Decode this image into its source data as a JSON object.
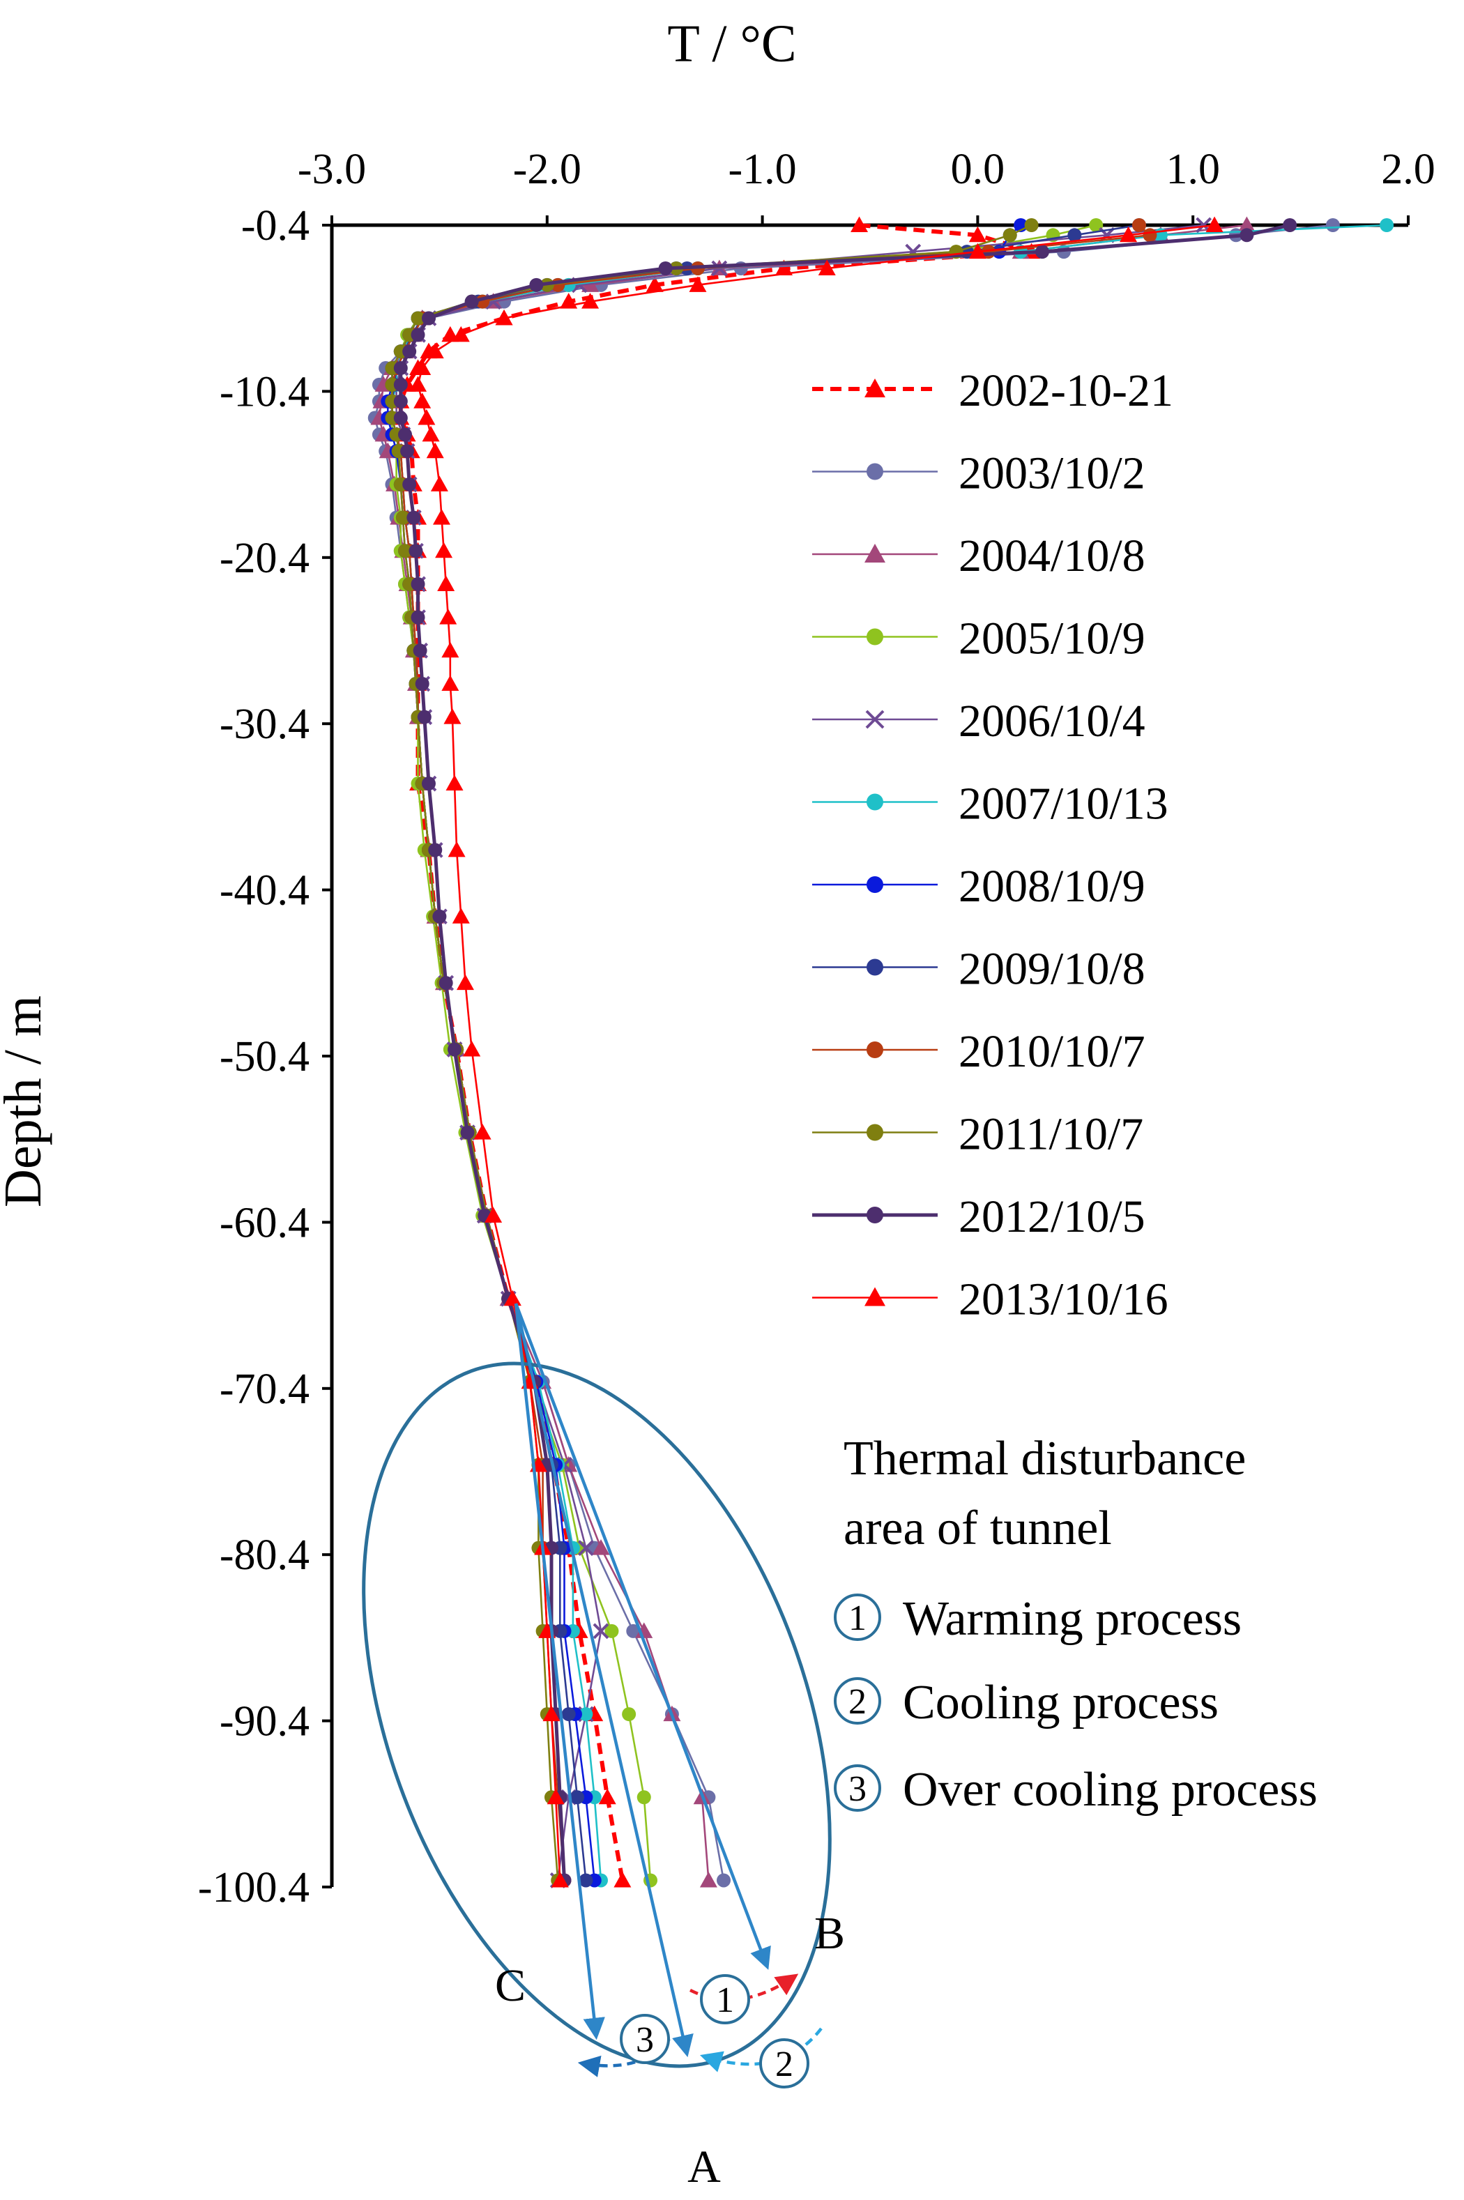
{
  "chart_data": {
    "type": "line",
    "title": "",
    "xlabel": "T / °C",
    "ylabel": "Depth / m",
    "xlim": [
      -3.0,
      2.0
    ],
    "ylim": [
      -100.4,
      -0.4
    ],
    "xticks": [
      "-3.0",
      "-2.0",
      "-1.0",
      "0.0",
      "1.0",
      "2.0"
    ],
    "yticks": [
      "-0.4",
      "-10.4",
      "-20.4",
      "-30.4",
      "-40.4",
      "-50.4",
      "-60.4",
      "-70.4",
      "-80.4",
      "-90.4",
      "-100.4"
    ],
    "depths": [
      -0.4,
      -1,
      -2,
      -3,
      -4,
      -5,
      -6,
      -7,
      -8,
      -9,
      -10,
      -11,
      -12,
      -13,
      -14,
      -16,
      -18,
      -20,
      -22,
      -24,
      -26,
      -28,
      -30,
      -34,
      -38,
      -42,
      -46,
      -50,
      -55,
      -60,
      -65,
      -70,
      -75,
      -80,
      -85,
      -90,
      -95,
      -100
    ],
    "series": [
      {
        "name": "2002-10-21",
        "color": "#ff0000",
        "marker": "triangle",
        "dashed": true,
        "values": [
          -0.55,
          0.0,
          0.25,
          -0.9,
          -1.5,
          -1.9,
          -2.2,
          -2.45,
          -2.55,
          -2.6,
          -2.65,
          -2.68,
          -2.68,
          -2.65,
          -2.63,
          -2.62,
          -2.6,
          -2.6,
          -2.6,
          -2.6,
          -2.6,
          -2.6,
          -2.6,
          -2.6,
          -2.55,
          -2.52,
          -2.48,
          -2.42,
          -2.36,
          -2.28,
          -2.18,
          -2.05,
          -1.97,
          -1.9,
          -1.85,
          -1.78,
          -1.72,
          -1.65
        ]
      },
      {
        "name": "2003/10/2",
        "color": "#6b6fa8",
        "marker": "circle",
        "dashed": false,
        "values": [
          1.65,
          1.2,
          0.4,
          -1.1,
          -1.75,
          -2.2,
          -2.55,
          -2.62,
          -2.68,
          -2.75,
          -2.78,
          -2.78,
          -2.8,
          -2.78,
          -2.75,
          -2.72,
          -2.7,
          -2.68,
          -2.66,
          -2.64,
          -2.62,
          -2.6,
          -2.6,
          -2.58,
          -2.55,
          -2.52,
          -2.48,
          -2.42,
          -2.36,
          -2.28,
          -2.18,
          -2.02,
          -1.9,
          -1.78,
          -1.6,
          -1.42,
          -1.25,
          -1.18
        ]
      },
      {
        "name": "2004/10/8",
        "color": "#a3477a",
        "marker": "triangle",
        "dashed": false,
        "values": [
          1.25,
          0.85,
          0.2,
          -1.2,
          -1.8,
          -2.25,
          -2.58,
          -2.62,
          -2.66,
          -2.72,
          -2.76,
          -2.77,
          -2.78,
          -2.76,
          -2.74,
          -2.71,
          -2.69,
          -2.67,
          -2.65,
          -2.63,
          -2.62,
          -2.61,
          -2.6,
          -2.58,
          -2.55,
          -2.52,
          -2.48,
          -2.42,
          -2.36,
          -2.28,
          -2.18,
          -2.02,
          -1.9,
          -1.75,
          -1.55,
          -1.42,
          -1.28,
          -1.25
        ]
      },
      {
        "name": "2005/10/9",
        "color": "#8fc31f",
        "marker": "circle",
        "dashed": false,
        "values": [
          0.55,
          0.35,
          -0.1,
          -1.3,
          -1.9,
          -2.3,
          -2.6,
          -2.65,
          -2.68,
          -2.72,
          -2.72,
          -2.72,
          -2.72,
          -2.72,
          -2.7,
          -2.7,
          -2.68,
          -2.68,
          -2.66,
          -2.64,
          -2.62,
          -2.61,
          -2.6,
          -2.6,
          -2.57,
          -2.53,
          -2.49,
          -2.45,
          -2.38,
          -2.3,
          -2.18,
          -2.07,
          -1.93,
          -1.85,
          -1.7,
          -1.62,
          -1.55,
          -1.52
        ]
      },
      {
        "name": "2006/10/4",
        "color": "#6e4a94",
        "marker": "x",
        "dashed": false,
        "values": [
          1.05,
          0.6,
          -0.3,
          -1.2,
          -1.85,
          -2.25,
          -2.55,
          -2.6,
          -2.64,
          -2.68,
          -2.7,
          -2.7,
          -2.7,
          -2.67,
          -2.65,
          -2.64,
          -2.62,
          -2.61,
          -2.6,
          -2.6,
          -2.59,
          -2.58,
          -2.57,
          -2.55,
          -2.52,
          -2.5,
          -2.47,
          -2.43,
          -2.37,
          -2.29,
          -2.18,
          -2.05,
          -1.92,
          -1.82,
          -1.75,
          -1.82,
          -1.9,
          -1.95
        ]
      },
      {
        "name": "2007/10/13",
        "color": "#1fc0c8",
        "marker": "circle",
        "dashed": false,
        "values": [
          1.9,
          0.85,
          0.2,
          -1.3,
          -1.9,
          -2.3,
          -2.6,
          -2.64,
          -2.67,
          -2.7,
          -2.7,
          -2.72,
          -2.72,
          -2.7,
          -2.68,
          -2.67,
          -2.66,
          -2.64,
          -2.63,
          -2.62,
          -2.61,
          -2.6,
          -2.6,
          -2.58,
          -2.55,
          -2.52,
          -2.48,
          -2.42,
          -2.36,
          -2.28,
          -2.18,
          -2.04,
          -1.95,
          -1.88,
          -1.88,
          -1.82,
          -1.78,
          -1.75
        ]
      },
      {
        "name": "2008/10/9",
        "color": "#0a1adc",
        "marker": "circle",
        "dashed": false,
        "values": [
          0.2,
          0.15,
          0.1,
          -1.4,
          -2.0,
          -2.35,
          -2.6,
          -2.64,
          -2.68,
          -2.72,
          -2.72,
          -2.74,
          -2.74,
          -2.72,
          -2.7,
          -2.68,
          -2.67,
          -2.66,
          -2.64,
          -2.63,
          -2.62,
          -2.61,
          -2.6,
          -2.58,
          -2.55,
          -2.52,
          -2.48,
          -2.42,
          -2.36,
          -2.28,
          -2.18,
          -2.05,
          -1.96,
          -1.92,
          -1.92,
          -1.87,
          -1.82,
          -1.78
        ]
      },
      {
        "name": "2009/10/8",
        "color": "#2c3a92",
        "marker": "circle",
        "dashed": false,
        "values": [
          0.75,
          0.45,
          -0.05,
          -1.35,
          -1.95,
          -2.32,
          -2.58,
          -2.63,
          -2.66,
          -2.7,
          -2.71,
          -2.72,
          -2.72,
          -2.7,
          -2.68,
          -2.67,
          -2.66,
          -2.64,
          -2.63,
          -2.62,
          -2.61,
          -2.6,
          -2.6,
          -2.58,
          -2.55,
          -2.52,
          -2.48,
          -2.42,
          -2.36,
          -2.28,
          -2.18,
          -2.06,
          -1.98,
          -1.94,
          -1.94,
          -1.9,
          -1.86,
          -1.82
        ]
      },
      {
        "name": "2010/10/7",
        "color": "#b83d12",
        "marker": "circle",
        "dashed": false,
        "values": [
          0.75,
          0.8,
          0.05,
          -1.3,
          -1.95,
          -2.3,
          -2.58,
          -2.62,
          -2.66,
          -2.7,
          -2.72,
          -2.72,
          -2.72,
          -2.7,
          -2.68,
          -2.67,
          -2.66,
          -2.64,
          -2.63,
          -2.62,
          -2.61,
          -2.6,
          -2.6,
          -2.58,
          -2.55,
          -2.52,
          -2.48,
          -2.42,
          -2.36,
          -2.28,
          -2.18,
          -2.08,
          -2.02,
          -2.02,
          -2.0,
          -1.98,
          -1.95,
          -1.92
        ]
      },
      {
        "name": "2011/10/7",
        "color": "#7f7f10",
        "marker": "circle",
        "dashed": false,
        "values": [
          0.25,
          0.15,
          -0.1,
          -1.4,
          -2.0,
          -2.35,
          -2.6,
          -2.64,
          -2.68,
          -2.72,
          -2.72,
          -2.72,
          -2.72,
          -2.7,
          -2.69,
          -2.68,
          -2.67,
          -2.66,
          -2.64,
          -2.63,
          -2.62,
          -2.61,
          -2.6,
          -2.58,
          -2.55,
          -2.52,
          -2.48,
          -2.42,
          -2.36,
          -2.28,
          -2.18,
          -2.08,
          -2.04,
          -2.04,
          -2.02,
          -2.0,
          -1.98,
          -1.95
        ]
      },
      {
        "name": "2012/10/5",
        "color": "#4d2e6e",
        "marker": "circle",
        "dashed": false,
        "values": [
          1.45,
          1.25,
          0.3,
          -1.45,
          -2.05,
          -2.35,
          -2.55,
          -2.6,
          -2.64,
          -2.68,
          -2.68,
          -2.68,
          -2.68,
          -2.66,
          -2.65,
          -2.64,
          -2.62,
          -2.61,
          -2.6,
          -2.6,
          -2.59,
          -2.58,
          -2.57,
          -2.55,
          -2.52,
          -2.5,
          -2.47,
          -2.43,
          -2.37,
          -2.29,
          -2.18,
          -2.06,
          -2.0,
          -1.98,
          -1.98,
          -1.96,
          -1.94,
          -1.92
        ]
      },
      {
        "name": "2013/10/16",
        "color": "#ff0000",
        "marker": "triangle",
        "dashed": false,
        "values": [
          1.1,
          0.7,
          0.0,
          -0.7,
          -1.3,
          -1.8,
          -2.2,
          -2.4,
          -2.52,
          -2.58,
          -2.6,
          -2.58,
          -2.56,
          -2.54,
          -2.52,
          -2.5,
          -2.49,
          -2.48,
          -2.47,
          -2.46,
          -2.45,
          -2.45,
          -2.44,
          -2.43,
          -2.42,
          -2.4,
          -2.38,
          -2.35,
          -2.3,
          -2.25,
          -2.16,
          -2.08,
          -2.04,
          -2.02,
          -2.0,
          -1.98,
          -1.96,
          -1.94
        ]
      }
    ],
    "legend_position": "right",
    "annotations": {
      "region_title_line1": "Thermal disturbance",
      "region_title_line2": "area of tunnel",
      "processes": [
        {
          "num": "1",
          "label": "Warming process"
        },
        {
          "num": "2",
          "label": "Cooling process"
        },
        {
          "num": "3",
          "label": "Over cooling process"
        }
      ],
      "arrow_labels": [
        "A",
        "B",
        "C"
      ]
    }
  }
}
